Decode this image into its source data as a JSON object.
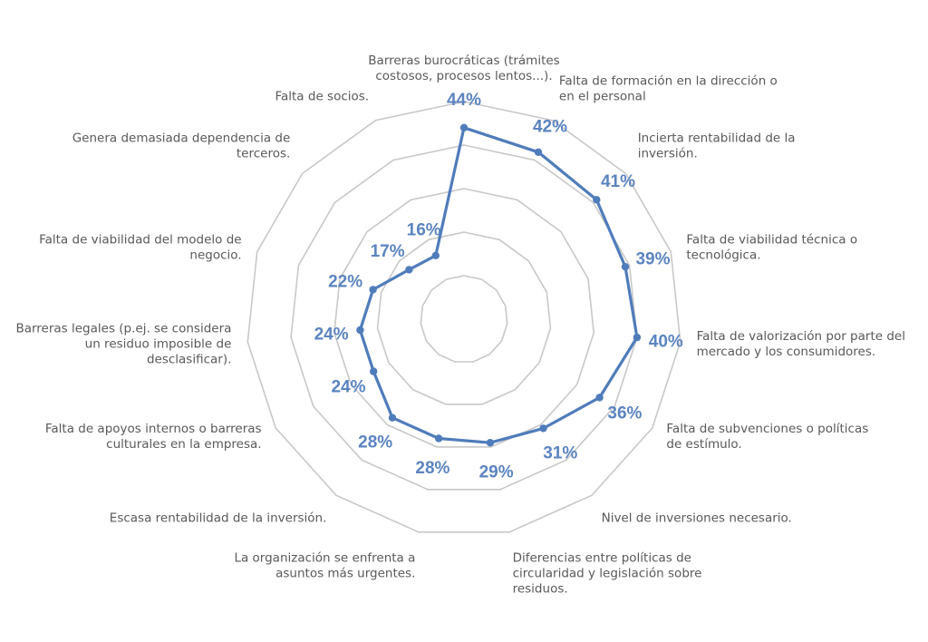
{
  "chart_data": {
    "type": "radar",
    "title": "",
    "legend": "none",
    "grid": true,
    "scale_max_percent": 50,
    "scale_steps": 5,
    "series": [
      {
        "values": [
          44,
          42,
          41,
          39,
          40,
          36,
          31,
          29,
          28,
          28,
          24,
          24,
          22,
          17,
          16
        ],
        "value_labels": [
          "44%",
          "42%",
          "41%",
          "39%",
          "40%",
          "36%",
          "31%",
          "29%",
          "28%",
          "28%",
          "24%",
          "24%",
          "22%",
          "17%",
          "16%"
        ],
        "color": "#4f7cbb"
      }
    ],
    "categories": [
      [
        "Barreras burocráticas (trámites",
        "costosos, procesos lentos...)."
      ],
      [
        "Falta de formación en la dirección o",
        "en el personal"
      ],
      [
        "Incierta rentabilidad de la",
        "inversión."
      ],
      [
        "Falta de viabilidad técnica o",
        "tecnológica."
      ],
      [
        "Falta de valorización por parte del",
        "mercado y los consumidores."
      ],
      [
        "Falta de subvenciones o políticas",
        "de estímulo."
      ],
      [
        "Nivel de inversiones necesario."
      ],
      [
        "Diferencias entre políticas de",
        "circularidad y legislación sobre",
        "residuos."
      ],
      [
        "La organización se enfrenta a",
        "asuntos más urgentes."
      ],
      [
        "Escasa rentabilidad de la inversión."
      ],
      [
        "Falta de apoyos internos o barreras",
        "culturales en la empresa."
      ],
      [
        "Barreras legales (p.ej. se considera",
        "un residuo imposible de",
        "desclasificar)."
      ],
      [
        "Falta de viabilidad del modelo de",
        "negocio."
      ],
      [
        "Genera demasiada dependencia de",
        "terceros."
      ],
      [
        "Falta de socios."
      ]
    ],
    "colors": {
      "line": "#4f7cbb",
      "value_labels": "#5b84c0",
      "grid": "#c8c8c8",
      "text": "#595959"
    }
  }
}
